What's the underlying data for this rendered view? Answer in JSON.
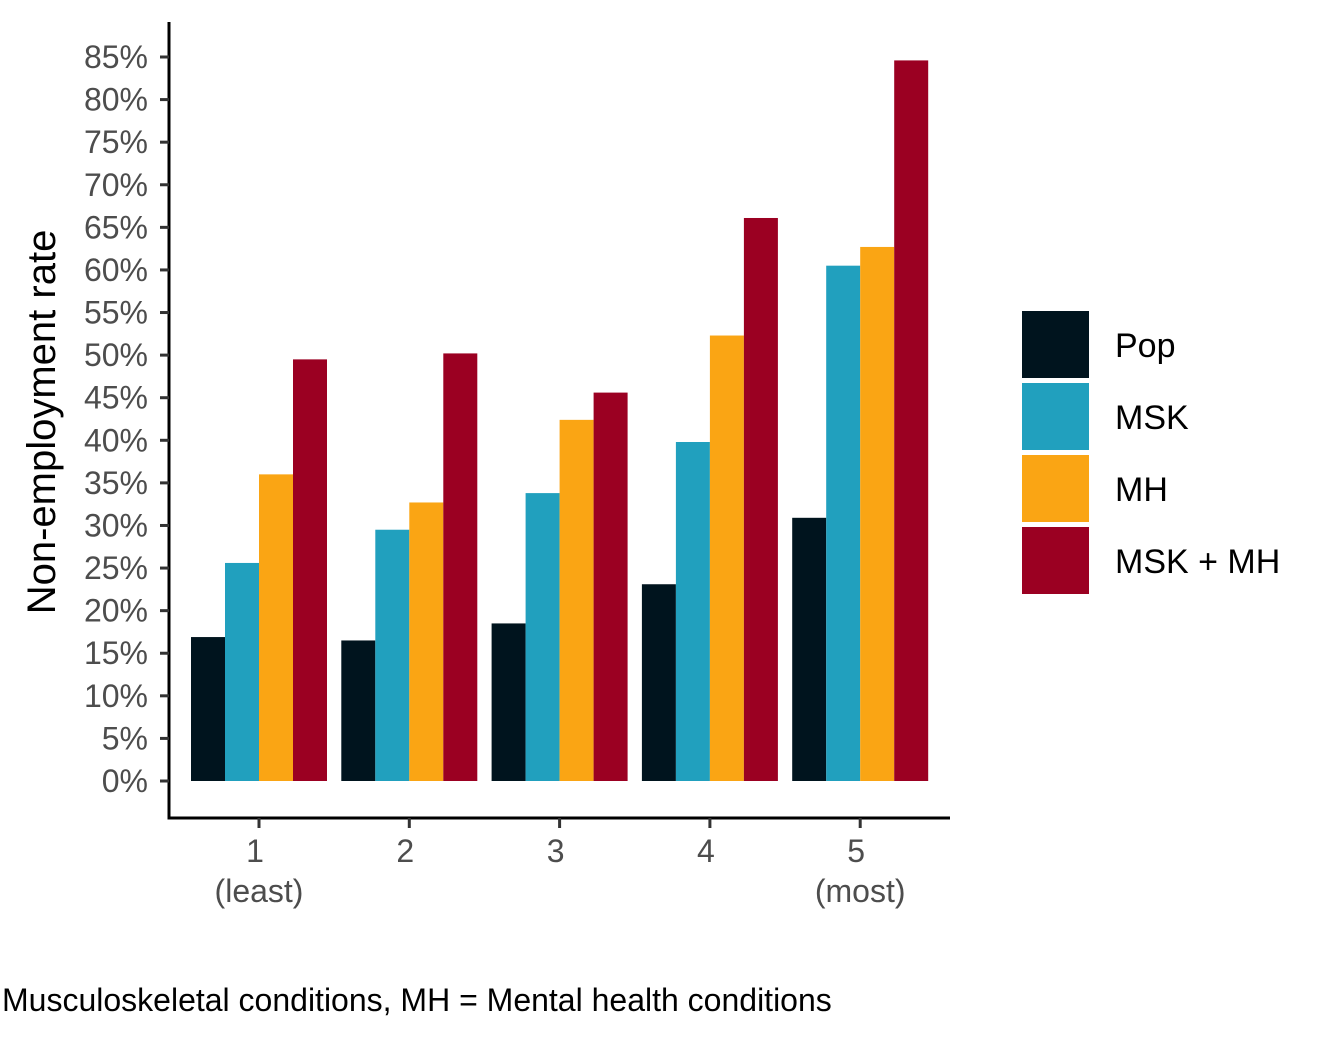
{
  "chart_data": {
    "type": "bar",
    "ylabel": "Non-employment rate",
    "xlabel": "",
    "categories": [
      "1",
      "2",
      "3",
      "4",
      "5"
    ],
    "category_sublabels": [
      "(least)",
      "",
      "",
      "",
      "(most)"
    ],
    "ylim": [
      0,
      85
    ],
    "yticks": [
      0,
      5,
      10,
      15,
      20,
      25,
      30,
      35,
      40,
      45,
      50,
      55,
      60,
      65,
      70,
      75,
      80,
      85
    ],
    "ytick_labels": [
      "0%",
      "5%",
      "10%",
      "15%",
      "20%",
      "25%",
      "30%",
      "35%",
      "40%",
      "45%",
      "50%",
      "55%",
      "60%",
      "65%",
      "70%",
      "75%",
      "80%",
      "85%"
    ],
    "series": [
      {
        "name": "Pop",
        "color": "#00141e",
        "values": [
          16.9,
          16.5,
          18.5,
          23.1,
          30.9
        ]
      },
      {
        "name": "MSK",
        "color": "#21a0be",
        "values": [
          25.6,
          29.5,
          33.8,
          39.8,
          60.5
        ]
      },
      {
        "name": "MH",
        "color": "#faa514",
        "values": [
          36.0,
          32.7,
          42.4,
          52.3,
          62.7
        ]
      },
      {
        "name": "MSK + MH",
        "color": "#9b0022",
        "values": [
          49.5,
          50.2,
          45.6,
          66.1,
          84.6
        ]
      }
    ],
    "legend_position": "right",
    "grid": false,
    "caption": "Musculoskeletal conditions, MH = Mental health conditions"
  }
}
